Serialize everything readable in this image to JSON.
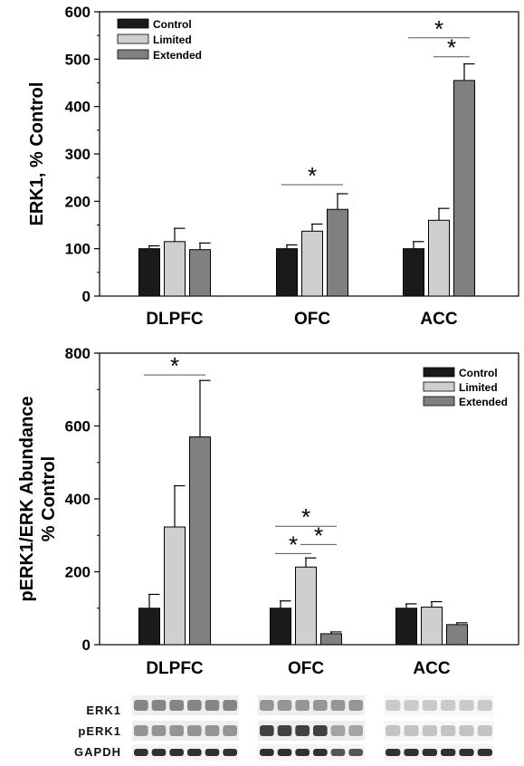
{
  "chart_data": [
    {
      "type": "bar",
      "ylabel": "ERK1, % Control",
      "ylim": [
        0,
        600
      ],
      "yticks": [
        "0",
        "100",
        "200",
        "300",
        "400",
        "500",
        "600"
      ],
      "categories": [
        "DLPFC",
        "OFC",
        "ACC"
      ],
      "series": [
        {
          "name": "Control",
          "color": "#1a1a1a",
          "values": [
            100,
            100,
            100
          ],
          "errors": [
            6,
            8,
            15
          ]
        },
        {
          "name": "Limited",
          "color": "#cfcfcf",
          "values": [
            115,
            137,
            160
          ],
          "errors": [
            28,
            15,
            25
          ]
        },
        {
          "name": "Extended",
          "color": "#808080",
          "values": [
            98,
            183,
            455
          ],
          "errors": [
            14,
            33,
            35
          ]
        }
      ],
      "legend_position": "top-left",
      "significance": [
        {
          "label": "*",
          "group": 1,
          "from": "Control",
          "to": "Extended",
          "y": 235
        },
        {
          "label": "*",
          "group": 2,
          "from": "Control",
          "to": "Extended",
          "y": 545
        },
        {
          "label": "*",
          "group": 2,
          "from": "Limited",
          "to": "Extended",
          "y": 505
        }
      ]
    },
    {
      "type": "bar",
      "ylabel": "pERK1/ERK Abundance % Control",
      "ylabel_lines": [
        "pERK1/ERK Abundance",
        "% Control"
      ],
      "ylim": [
        0,
        800
      ],
      "yticks": [
        "0",
        "200",
        "400",
        "600",
        "800"
      ],
      "categories": [
        "DLPFC",
        "OFC",
        "ACC"
      ],
      "series": [
        {
          "name": "Control",
          "color": "#1a1a1a",
          "values": [
            100,
            100,
            100
          ],
          "errors": [
            38,
            20,
            12
          ]
        },
        {
          "name": "Limited",
          "color": "#cfcfcf",
          "values": [
            323,
            213,
            103
          ],
          "errors": [
            113,
            25,
            15
          ]
        },
        {
          "name": "Extended",
          "color": "#808080",
          "values": [
            570,
            30,
            55
          ],
          "errors": [
            155,
            5,
            5
          ]
        }
      ],
      "legend_position": "top-right",
      "significance": [
        {
          "label": "*",
          "group": 0,
          "from": "Control",
          "to": "Extended",
          "y": 740
        },
        {
          "label": "*",
          "group": 1,
          "from": "Control",
          "to": "Extended",
          "y": 325
        },
        {
          "label": "*",
          "group": 1,
          "from": "Control",
          "to": "Limited",
          "y": 250
        },
        {
          "label": "*",
          "group": 1,
          "from": "Limited",
          "to": "Extended",
          "y": 275
        }
      ]
    }
  ],
  "blot": {
    "rows": [
      "ERK1",
      "pERK1",
      "GAPDH"
    ]
  }
}
